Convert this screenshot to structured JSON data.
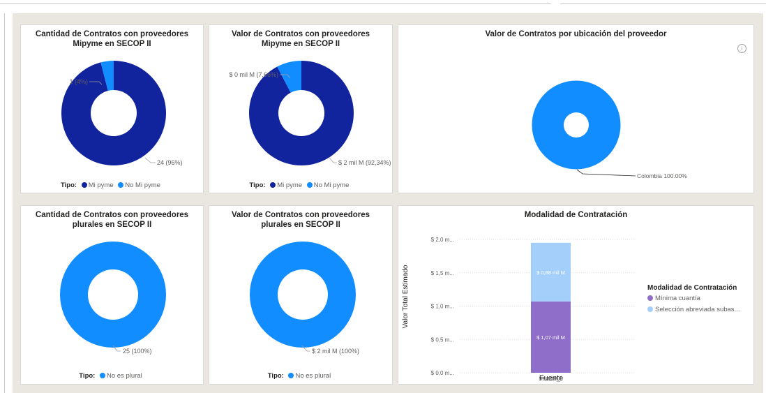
{
  "colors": {
    "mi_pyme": "#12239e",
    "no_mi_pyme": "#118dff",
    "no_es_plural": "#118dff",
    "minima_cuantia": "#8e6ec8",
    "seleccion_abreviada": "#a4cffa"
  },
  "cards": {
    "c1": {
      "title1": "Cantidad de Contratos con proveedores",
      "title2": "Mipyme en SECOP II",
      "label_small": "1 (4%)",
      "label_big": "24 (96%)",
      "legend_title": "Tipo:",
      "legend1": "Mi pyme",
      "legend2": "No Mi pyme"
    },
    "c2": {
      "title1": "Valor de Contratos con proveedores",
      "title2": "Mipyme en SECOP II",
      "label_small": "$ 0 mil M (7,66%)",
      "label_big": "$ 2 mil M (92,34%)",
      "legend_title": "Tipo:",
      "legend1": "Mi pyme",
      "legend2": "No Mi pyme"
    },
    "c3": {
      "title": "Valor de Contratos por ubicación del proveedor",
      "label": "Colombia 100.00%",
      "info_icon": "info-icon"
    },
    "c4": {
      "title1": "Cantidad de Contratos con proveedores",
      "title2": "plurales en SECOP II",
      "label": "25 (100%)",
      "legend_title": "Tipo:",
      "legend1": "No es plural"
    },
    "c5": {
      "title1": "Valor de Contratos con proveedores",
      "title2": "plurales en SECOP II",
      "label": "$ 2 mil M (100%)",
      "legend_title": "Tipo:",
      "legend1": "No es plural"
    },
    "c6": {
      "title": "Modalidad de Contratación",
      "legend_title": "Modalidad de Contratación",
      "legend1": "Mínima cuantía",
      "legend2": "Selección abreviada subas..."
    }
  },
  "chart_data": [
    {
      "type": "pie",
      "title": "Cantidad de Contratos con proveedores Mipyme en SECOP II",
      "categories": [
        "Mi pyme",
        "No Mi pyme"
      ],
      "values": [
        24,
        1
      ],
      "labels": [
        "24 (96%)",
        "1 (4%)"
      ],
      "legend_title": "Tipo:",
      "legend_position": "bottom"
    },
    {
      "type": "pie",
      "title": "Valor de Contratos con proveedores Mipyme en SECOP II",
      "categories": [
        "Mi pyme",
        "No Mi pyme"
      ],
      "values": [
        92.34,
        7.66
      ],
      "labels": [
        "$ 2 mil M (92,34%)",
        "$ 0 mil M (7,66%)"
      ],
      "legend_title": "Tipo:",
      "legend_position": "bottom"
    },
    {
      "type": "pie",
      "title": "Valor de Contratos por ubicación del proveedor",
      "categories": [
        "Colombia"
      ],
      "values": [
        100
      ],
      "labels": [
        "Colombia 100.00%"
      ]
    },
    {
      "type": "pie",
      "title": "Cantidad de Contratos con proveedores plurales en SECOP II",
      "categories": [
        "No es plural"
      ],
      "values": [
        25
      ],
      "labels": [
        "25 (100%)"
      ],
      "legend_title": "Tipo:",
      "legend_position": "bottom"
    },
    {
      "type": "pie",
      "title": "Valor de Contratos con proveedores plurales en SECOP II",
      "categories": [
        "No es plural"
      ],
      "values": [
        100
      ],
      "labels": [
        "$ 2 mil M (100%)"
      ],
      "legend_title": "Tipo:",
      "legend_position": "bottom"
    },
    {
      "type": "bar",
      "stacked": true,
      "title": "Modalidad de Contratación",
      "categories": [
        "SECOP_II"
      ],
      "series": [
        {
          "name": "Mínima cuantía",
          "values": [
            1.07
          ],
          "label": "$ 1,07 mil M"
        },
        {
          "name": "Selección abreviada subas...",
          "values": [
            0.88
          ],
          "label": "$ 0,88 mil M"
        }
      ],
      "xlabel": "Fuente",
      "ylabel": "Valor Total Estimado",
      "yticks": [
        "$ 0,0 m...",
        "$ 0,5 m...",
        "$ 1,0 m...",
        "$ 1,5 m...",
        "$ 2,0 m..."
      ],
      "ylim": [
        0,
        2.0
      ],
      "grid": true,
      "legend_title": "Modalidad de Contratación",
      "legend_position": "right"
    }
  ]
}
